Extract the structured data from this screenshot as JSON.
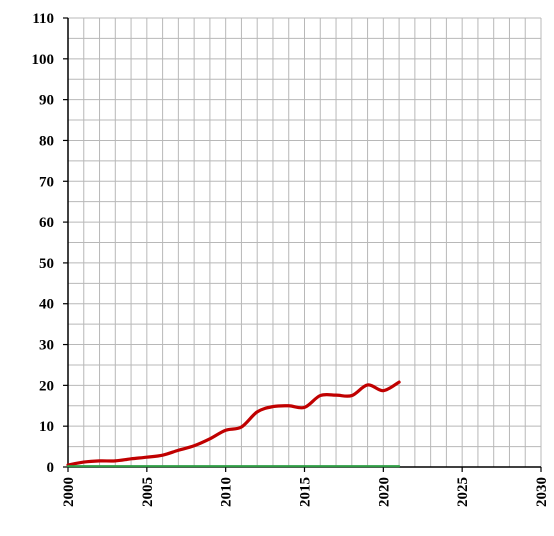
{
  "chart_data": {
    "type": "line",
    "title": "",
    "xlabel": "",
    "ylabel": "",
    "xlim": [
      2000,
      2030
    ],
    "ylim": [
      0,
      110
    ],
    "x_ticks": [
      "2000",
      "2005",
      "2010",
      "2015",
      "2020",
      "2025",
      "2030"
    ],
    "y_ticks": [
      "0",
      "10",
      "20",
      "30",
      "40",
      "50",
      "60",
      "70",
      "80",
      "90",
      "100",
      "110"
    ],
    "x_tick_values": [
      2000,
      2005,
      2010,
      2015,
      2020,
      2025,
      2030
    ],
    "y_tick_values": [
      0,
      10,
      20,
      30,
      40,
      50,
      60,
      70,
      80,
      90,
      100,
      110
    ],
    "grid": true,
    "x_minor_step": 1,
    "y_minor_step": 5,
    "legend": "none",
    "series": [
      {
        "color": "#c00000",
        "x": [
          2000,
          2001,
          2002,
          2003,
          2004,
          2005,
          2006,
          2007,
          2008,
          2009,
          2010,
          2011,
          2012,
          2013,
          2014,
          2015,
          2016,
          2017,
          2018,
          2019,
          2020,
          2021
        ],
        "values": [
          0.5,
          1.2,
          1.5,
          1.5,
          2.0,
          2.4,
          2.9,
          4.1,
          5.2,
          6.9,
          9.0,
          9.8,
          13.5,
          14.8,
          15.0,
          14.6,
          17.5,
          17.6,
          17.5,
          20.1,
          18.7,
          20.8
        ]
      },
      {
        "color": "#2e9e44",
        "x": [
          2000,
          2021
        ],
        "values": [
          0.2,
          0.2
        ]
      }
    ]
  }
}
